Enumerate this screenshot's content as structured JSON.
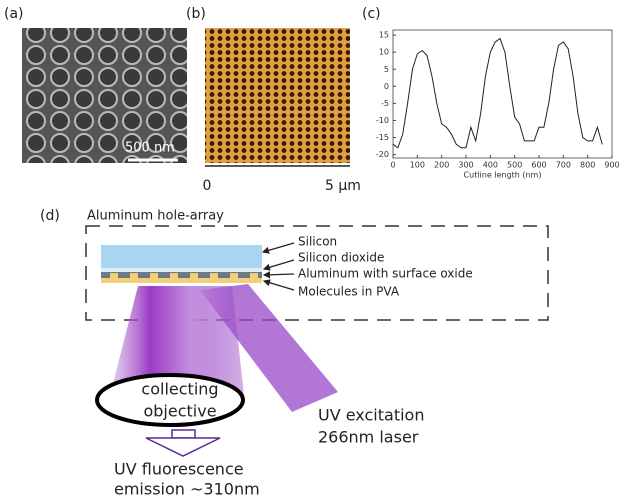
{
  "panels": {
    "a": {
      "label": "(a)",
      "scale_bar": "500 nm"
    },
    "b": {
      "label": "(b)",
      "axis_start": "0",
      "axis_end": "5 μm"
    },
    "c": {
      "label": "(c)"
    },
    "d": {
      "label": "(d)",
      "box_title": "Aluminum hole-array",
      "layers": [
        "Silicon",
        "Silicon dioxide",
        "Aluminum with surface oxide",
        "Molecules in PVA"
      ],
      "objective": [
        "collecting",
        "objective"
      ],
      "excitation": [
        "UV excitation",
        "266nm laser"
      ],
      "emission": [
        "UV fluorescence",
        "emission ~310nm"
      ]
    }
  },
  "chart_data": {
    "type": "line",
    "x_label": "Cutline length (nm)",
    "x": [
      0,
      20,
      40,
      60,
      80,
      100,
      120,
      140,
      160,
      180,
      200,
      220,
      240,
      260,
      280,
      300,
      320,
      340,
      360,
      380,
      400,
      420,
      440,
      460,
      480,
      500,
      520,
      540,
      560,
      580,
      600,
      620,
      640,
      660,
      680,
      700,
      720,
      740,
      760,
      780,
      800,
      820,
      840,
      860
    ],
    "series": [
      {
        "color": "#222222",
        "values": [
          -17,
          -18,
          -14,
          -5,
          5,
          9.5,
          10.5,
          9,
          3,
          -5,
          -11,
          -12,
          -14,
          -17,
          -18,
          -18,
          -12,
          -16,
          -8,
          3,
          10,
          13,
          14,
          10,
          0,
          -9,
          -11,
          -16,
          -16,
          -16,
          -12,
          -12,
          -5,
          5,
          12,
          13,
          11,
          3,
          -8,
          -15,
          -16,
          -16,
          -12,
          -17
        ]
      }
    ],
    "xlim": [
      0,
      900
    ],
    "ylim": [
      -21,
      16.5
    ],
    "xticks": [
      0,
      100,
      200,
      300,
      400,
      500,
      600,
      700,
      800,
      900
    ],
    "yticks": [
      -20,
      -15,
      -10,
      -5,
      0,
      5,
      10,
      15
    ]
  }
}
